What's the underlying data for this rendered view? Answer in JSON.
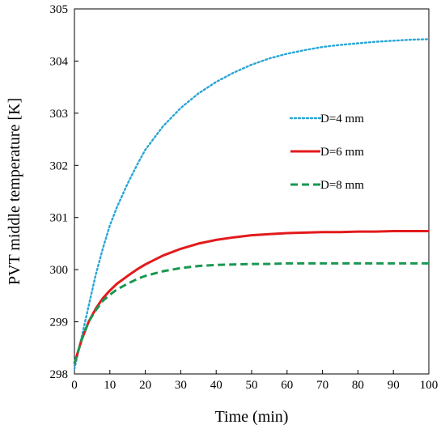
{
  "chart_data": {
    "type": "line",
    "title": "",
    "xlabel": "Time (min)",
    "ylabel": "PVT middle temperature [K]",
    "xlim": [
      0,
      100
    ],
    "ylim": [
      298,
      305
    ],
    "xticks": [
      "0",
      "10",
      "20",
      "30",
      "40",
      "50",
      "60",
      "70",
      "80",
      "90",
      "100"
    ],
    "yticks": [
      "298",
      "299",
      "300",
      "301",
      "302",
      "303",
      "304",
      "305"
    ],
    "grid": false,
    "legend_position": "center-right",
    "series": [
      {
        "name": "D=4 mm",
        "color": "#2aa6d6",
        "style": "dotted",
        "x": [
          0,
          1,
          2,
          4,
          6,
          8,
          10,
          12,
          15,
          18,
          20,
          25,
          30,
          35,
          40,
          45,
          50,
          55,
          60,
          65,
          70,
          75,
          80,
          85,
          90,
          95,
          100
        ],
        "y": [
          298.1,
          298.4,
          298.7,
          299.3,
          299.9,
          300.4,
          300.85,
          301.2,
          301.65,
          302.05,
          302.3,
          302.75,
          303.1,
          303.38,
          303.6,
          303.78,
          303.93,
          304.05,
          304.14,
          304.21,
          304.27,
          304.31,
          304.34,
          304.37,
          304.39,
          304.41,
          304.42
        ]
      },
      {
        "name": "D=6 mm",
        "color": "#e31a1c",
        "style": "solid",
        "x": [
          0,
          2,
          4,
          6,
          8,
          10,
          12,
          15,
          18,
          20,
          25,
          30,
          35,
          40,
          45,
          50,
          55,
          60,
          65,
          70,
          75,
          80,
          85,
          90,
          95,
          100
        ],
        "y": [
          298.2,
          298.65,
          299.0,
          299.25,
          299.45,
          299.6,
          299.73,
          299.88,
          300.02,
          300.1,
          300.27,
          300.4,
          300.5,
          300.57,
          300.62,
          300.66,
          300.68,
          300.7,
          300.71,
          300.72,
          300.72,
          300.73,
          300.73,
          300.74,
          300.74,
          300.74
        ]
      },
      {
        "name": "D=8 mm",
        "color": "#1a9850",
        "style": "dashed",
        "x": [
          0,
          2,
          4,
          6,
          8,
          10,
          12,
          15,
          18,
          20,
          25,
          30,
          35,
          40,
          45,
          50,
          55,
          60,
          65,
          70,
          75,
          80,
          85,
          90,
          95,
          100
        ],
        "y": [
          298.2,
          298.65,
          299.0,
          299.22,
          299.4,
          299.52,
          299.62,
          299.73,
          299.83,
          299.88,
          299.97,
          300.03,
          300.07,
          300.09,
          300.1,
          300.11,
          300.11,
          300.12,
          300.12,
          300.12,
          300.12,
          300.12,
          300.12,
          300.12,
          300.12,
          300.12
        ]
      }
    ]
  }
}
